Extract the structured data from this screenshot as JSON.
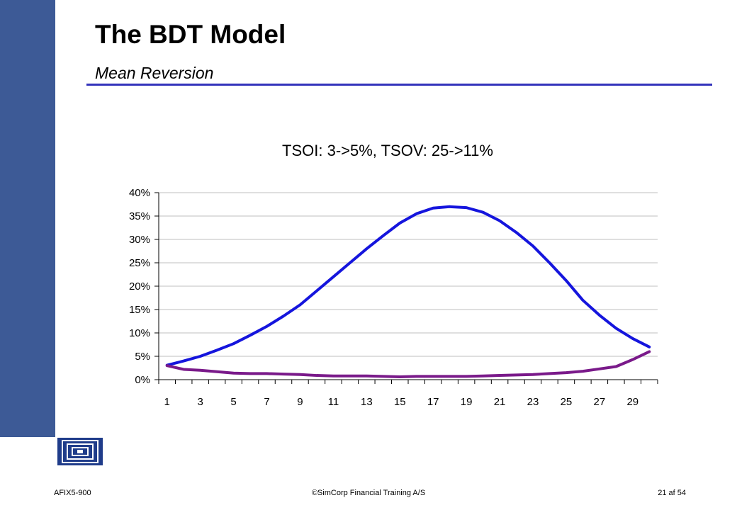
{
  "slide": {
    "title": "The BDT Model",
    "subtitle": "Mean Reversion",
    "accent_color": "#3d5a96",
    "rule_color": "#3333bb"
  },
  "footer": {
    "left": "AFIX5-900",
    "center": "©SimCorp Financial Training A/S",
    "right": "21 af 54"
  },
  "logo": {
    "icon": "nested-squares-logo-icon"
  },
  "chart_data": {
    "type": "line",
    "title": "TSOI: 3->5%, TSOV: 25->11%",
    "xlabel": "",
    "ylabel": "",
    "x": [
      1,
      2,
      3,
      4,
      5,
      6,
      7,
      8,
      9,
      10,
      11,
      12,
      13,
      14,
      15,
      16,
      17,
      18,
      19,
      20,
      21,
      22,
      23,
      24,
      25,
      26,
      27,
      28,
      29,
      30
    ],
    "x_tick_labels": [
      "1",
      "3",
      "5",
      "7",
      "9",
      "11",
      "13",
      "15",
      "17",
      "19",
      "21",
      "23",
      "25",
      "27",
      "29"
    ],
    "ylim": [
      0,
      40
    ],
    "y_ticks": [
      0,
      5,
      10,
      15,
      20,
      25,
      30,
      35,
      40
    ],
    "y_tick_labels": [
      "0%",
      "5%",
      "10%",
      "15%",
      "20%",
      "25%",
      "30%",
      "35%",
      "40%"
    ],
    "grid": true,
    "legend": "none",
    "series": [
      {
        "color": "#1515dd",
        "values": [
          3.1,
          4.0,
          5.0,
          6.3,
          7.7,
          9.5,
          11.4,
          13.6,
          16.0,
          19.0,
          22.0,
          25.0,
          28.0,
          30.8,
          33.5,
          35.5,
          36.7,
          37.0,
          36.8,
          35.8,
          34.0,
          31.5,
          28.6,
          25.0,
          21.2,
          17.0,
          13.8,
          11.0,
          8.8,
          7.0
        ]
      },
      {
        "color": "#7a1a8a",
        "values": [
          3.0,
          2.2,
          2.0,
          1.7,
          1.4,
          1.3,
          1.3,
          1.2,
          1.1,
          0.9,
          0.8,
          0.8,
          0.8,
          0.7,
          0.6,
          0.7,
          0.7,
          0.7,
          0.7,
          0.8,
          0.9,
          1.0,
          1.1,
          1.3,
          1.5,
          1.8,
          2.3,
          2.8,
          4.3,
          6.0
        ]
      }
    ]
  }
}
